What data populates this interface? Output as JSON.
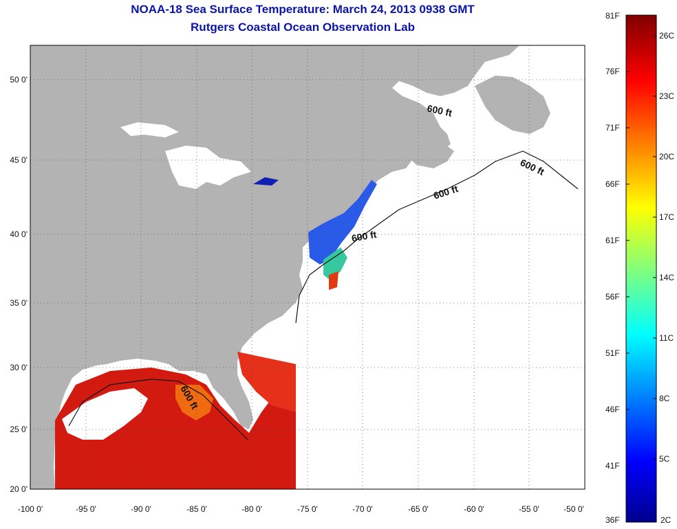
{
  "title": {
    "line1": "NOAA-18 Sea Surface Temperature:  March 24, 2013 0938 GMT",
    "line2": "Rutgers Coastal Ocean Observation Lab"
  },
  "map": {
    "lon_range": [
      -100,
      -50
    ],
    "lat_range": [
      20,
      52.5
    ],
    "x_ticks": [
      {
        "value": -100,
        "label": "-100 0'"
      },
      {
        "value": -95,
        "label": "-95 0'"
      },
      {
        "value": -90,
        "label": "-90 0'"
      },
      {
        "value": -85,
        "label": "-85 0'"
      },
      {
        "value": -80,
        "label": "-80 0'"
      },
      {
        "value": -75,
        "label": "-75 0'"
      },
      {
        "value": -70,
        "label": "-70 0'"
      },
      {
        "value": -65,
        "label": "-65 0'"
      },
      {
        "value": -60,
        "label": "-60 0'"
      },
      {
        "value": -55,
        "label": "-55 0'"
      },
      {
        "value": -50,
        "label": "-50 0'"
      }
    ],
    "y_ticks": [
      {
        "value": 50,
        "label": "50 0'"
      },
      {
        "value": 45,
        "label": "45 0'"
      },
      {
        "value": 40,
        "label": "40 0'"
      },
      {
        "value": 35,
        "label": "35 0'"
      },
      {
        "value": 30,
        "label": "30 0'"
      },
      {
        "value": 25,
        "label": "25 0'"
      },
      {
        "value": 20,
        "label": "20 0'"
      }
    ],
    "contour_labels": [
      "600 ft",
      "600 ft",
      "600 ft",
      "600 ft",
      "600 ft"
    ],
    "colors": {
      "land": "#b3b3b3",
      "ocean": "#ffffff",
      "grid": "#555555",
      "warm": "#d21a10",
      "cool": "#2a5ae8"
    }
  },
  "colorbar": {
    "top_left": "81F",
    "bottom_left": "36F",
    "bottom_right": "2C",
    "f_labels": [
      "76F",
      "71F",
      "66F",
      "61F",
      "56F",
      "51F",
      "46F",
      "41F"
    ],
    "c_labels": [
      "26C",
      "23C",
      "20C",
      "17C",
      "14C",
      "11C",
      "8C",
      "5C"
    ]
  }
}
